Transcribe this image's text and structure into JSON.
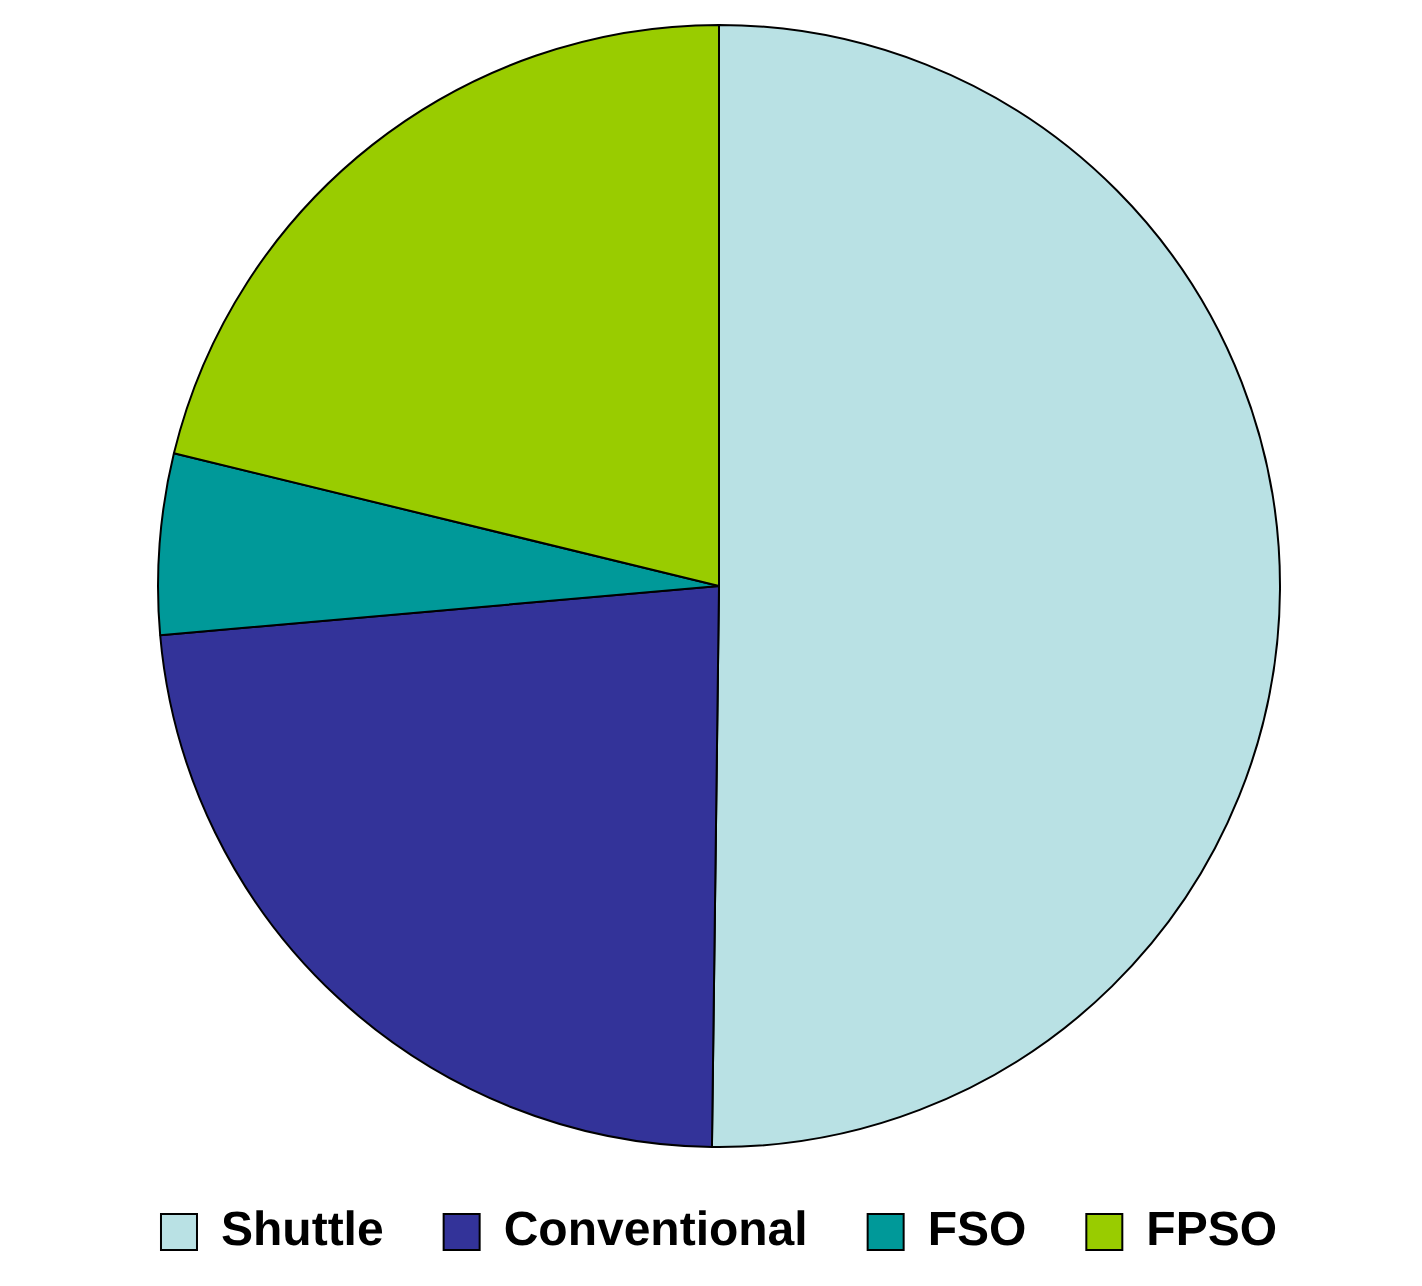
{
  "chart_data": {
    "type": "pie",
    "categories": [
      "Shuttle",
      "Conventional",
      "FSO",
      "FPSO"
    ],
    "values": [
      50.2,
      23.4,
      5.2,
      21.2
    ],
    "colors": [
      "#b9e1e4",
      "#333399",
      "#009999",
      "#99cc00"
    ],
    "legend": "bottom"
  }
}
